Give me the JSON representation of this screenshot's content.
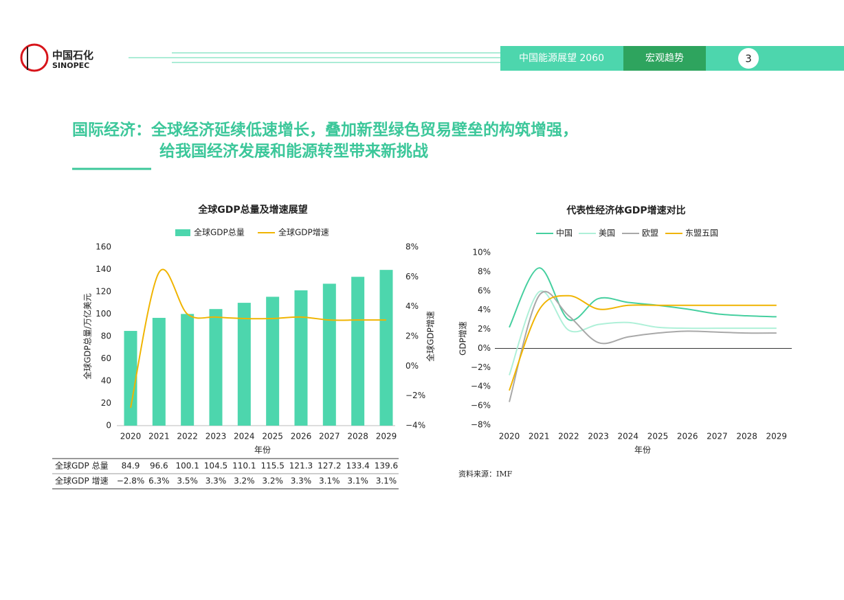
{
  "header": {
    "logo": "中国石化",
    "logo_en": "SINOPEC",
    "tab1": "中国能源展望 2060",
    "tab2": "宏观趋势",
    "page": "3"
  },
  "title": {
    "line1": "国际经济：全球经济延续低速增长，叠加新型绿色贸易壁垒的构筑增强，",
    "line2": "给我国经济发展和能源转型带来新挑战"
  },
  "chart_data": [
    {
      "type": "bar",
      "title": "全球GDP总量及增速展望",
      "xlabel": "年份",
      "ylabel": "全球GDP总量/万亿美元",
      "y2label": "全球GDP增速",
      "categories": [
        "2020",
        "2021",
        "2022",
        "2023",
        "2024",
        "2025",
        "2026",
        "2027",
        "2028",
        "2029"
      ],
      "series": [
        {
          "name": "全球GDP总量",
          "color": "#4dd6ad",
          "values": [
            84.9,
            96.6,
            100.1,
            104.5,
            110.1,
            115.5,
            121.3,
            127.2,
            133.4,
            139.6
          ]
        },
        {
          "name": "全球GDP增速",
          "color": "#f0b400",
          "axis": "y2",
          "values": [
            -2.8,
            6.3,
            3.5,
            3.3,
            3.2,
            3.2,
            3.3,
            3.1,
            3.1,
            3.1
          ]
        }
      ],
      "ylim": [
        0,
        160
      ],
      "yticks": [
        0,
        20,
        40,
        60,
        80,
        100,
        120,
        140,
        160
      ],
      "y2lim": [
        -4,
        8
      ],
      "y2ticks": [
        {
          "value": -4,
          "label": "−4%"
        },
        {
          "value": -2,
          "label": "−2%"
        },
        {
          "value": 0,
          "label": "0%"
        },
        {
          "value": 2,
          "label": "2%"
        },
        {
          "value": 4,
          "label": "4%"
        },
        {
          "value": 6,
          "label": "6%"
        },
        {
          "value": 8,
          "label": "8%"
        }
      ]
    },
    {
      "type": "line",
      "title": "代表性经济体GDP增速对比",
      "xlabel": "年份",
      "ylabel": "GDP增速",
      "categories": [
        "2020",
        "2021",
        "2022",
        "2023",
        "2024",
        "2025",
        "2026",
        "2027",
        "2028",
        "2029"
      ],
      "series": [
        {
          "name": "中国",
          "color": "#45cf9f",
          "values": [
            2.2,
            8.4,
            3.0,
            5.2,
            4.8,
            4.5,
            4.1,
            3.6,
            3.4,
            3.3
          ]
        },
        {
          "name": "美国",
          "color": "#aef0d8",
          "values": [
            -2.8,
            5.9,
            1.9,
            2.5,
            2.7,
            2.2,
            2.1,
            2.1,
            2.1,
            2.1
          ]
        },
        {
          "name": "欧盟",
          "color": "#a8a8a8",
          "values": [
            -5.6,
            5.5,
            3.4,
            0.6,
            1.2,
            1.6,
            1.8,
            1.7,
            1.6,
            1.6
          ]
        },
        {
          "name": "东盟五国",
          "color": "#f0b400",
          "values": [
            -4.4,
            4.0,
            5.5,
            4.1,
            4.5,
            4.5,
            4.5,
            4.5,
            4.5,
            4.5
          ]
        }
      ],
      "ylim": [
        -8,
        10
      ],
      "yticks": [
        {
          "value": -8,
          "label": "−8%"
        },
        {
          "value": -6,
          "label": "−6%"
        },
        {
          "value": -4,
          "label": "−4%"
        },
        {
          "value": -2,
          "label": "−2%"
        },
        {
          "value": 0,
          "label": "0%"
        },
        {
          "value": 2,
          "label": "2%"
        },
        {
          "value": 4,
          "label": "4%"
        },
        {
          "value": 6,
          "label": "6%"
        },
        {
          "value": 8,
          "label": "8%"
        },
        {
          "value": 10,
          "label": "10%"
        }
      ]
    }
  ],
  "table": {
    "rows": [
      [
        "全球GDP 总量",
        "84.9",
        "96.6",
        "100.1",
        "104.5",
        "110.1",
        "115.5",
        "121.3",
        "127.2",
        "133.4",
        "139.6"
      ],
      [
        "全球GDP 增速",
        "−2.8%",
        "6.3%",
        "3.5%",
        "3.3%",
        "3.2%",
        "3.2%",
        "3.3%",
        "3.1%",
        "3.1%",
        "3.1%"
      ]
    ]
  },
  "source": "资料来源：IMF"
}
